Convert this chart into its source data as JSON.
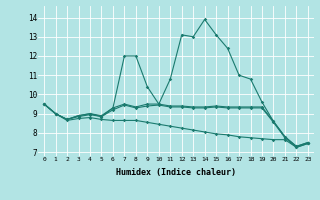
{
  "xlabel": "Humidex (Indice chaleur)",
  "background_color": "#b2e4e4",
  "grid_color": "#d0eeee",
  "line_color": "#1a7a6e",
  "xlim": [
    -0.5,
    23.5
  ],
  "ylim": [
    6.8,
    14.6
  ],
  "yticks": [
    7,
    8,
    9,
    10,
    11,
    12,
    13,
    14
  ],
  "xticks": [
    0,
    1,
    2,
    3,
    4,
    5,
    6,
    7,
    8,
    9,
    10,
    11,
    12,
    13,
    14,
    15,
    16,
    17,
    18,
    19,
    20,
    21,
    22,
    23
  ],
  "series": [
    [
      9.5,
      9.0,
      8.7,
      8.9,
      9.0,
      8.9,
      9.3,
      12.0,
      12.0,
      10.4,
      9.5,
      10.8,
      13.1,
      13.0,
      13.9,
      13.1,
      12.4,
      11.0,
      10.8,
      9.6,
      8.6,
      7.8,
      7.3,
      7.5
    ],
    [
      9.5,
      9.0,
      8.7,
      8.9,
      9.0,
      8.85,
      9.3,
      9.5,
      9.35,
      9.5,
      9.5,
      9.4,
      9.4,
      9.35,
      9.35,
      9.4,
      9.35,
      9.35,
      9.35,
      9.35,
      8.6,
      7.8,
      7.3,
      7.5
    ],
    [
      9.5,
      9.0,
      8.65,
      8.75,
      8.8,
      8.7,
      8.65,
      8.65,
      8.65,
      8.55,
      8.45,
      8.35,
      8.25,
      8.15,
      8.05,
      7.95,
      7.9,
      7.8,
      7.75,
      7.7,
      7.65,
      7.65,
      7.25,
      7.45
    ],
    [
      9.5,
      9.0,
      8.7,
      8.85,
      8.95,
      8.85,
      9.2,
      9.45,
      9.3,
      9.4,
      9.45,
      9.35,
      9.35,
      9.3,
      9.3,
      9.35,
      9.3,
      9.3,
      9.3,
      9.3,
      8.55,
      7.75,
      7.25,
      7.45
    ]
  ]
}
